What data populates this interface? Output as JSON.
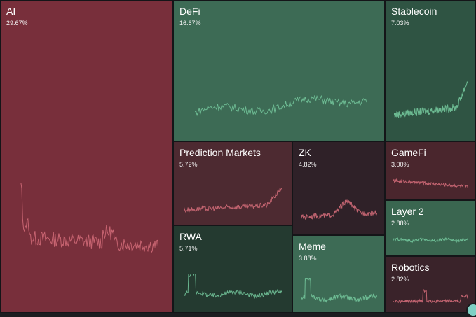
{
  "colors": {
    "up_strong": "#3d6b55",
    "up_dark": "#2e4f40",
    "down_strong": "#782f3b",
    "down_dark": "#4d2a31",
    "line_up": "#72c49a",
    "line_down": "#d06a78"
  },
  "tiles": [
    {
      "key": "ai",
      "name": "AI",
      "percent": "29.67%",
      "color": "#782f3b",
      "line": "#d06a78",
      "trend": "down-spike"
    },
    {
      "key": "defi",
      "name": "DeFi",
      "percent": "16.67%",
      "color": "#3d6b55",
      "line": "#72c49a",
      "trend": "up-wave"
    },
    {
      "key": "stablecoin",
      "name": "Stablecoin",
      "percent": "7.03%",
      "color": "#2f5443",
      "line": "#72c49a",
      "trend": "up-end"
    },
    {
      "key": "prediction",
      "name": "Prediction Markets",
      "percent": "5.72%",
      "color": "#4d2a31",
      "line": "#d06a78",
      "trend": "up-end"
    },
    {
      "key": "zk",
      "name": "ZK",
      "percent": "4.82%",
      "color": "#2f2128",
      "line": "#d06a78",
      "trend": "mid-hump"
    },
    {
      "key": "gamefi",
      "name": "GameFi",
      "percent": "3.00%",
      "color": "#4a262d",
      "line": "#d06a78",
      "trend": "flat-down"
    },
    {
      "key": "layer2",
      "name": "Layer 2",
      "percent": "2.88%",
      "color": "#3a6650",
      "line": "#72c49a",
      "trend": "flat"
    },
    {
      "key": "rwa",
      "name": "RWA",
      "percent": "5.71%",
      "color": "#243a30",
      "line": "#72c49a",
      "trend": "early-spike"
    },
    {
      "key": "meme",
      "name": "Meme",
      "percent": "3.88%",
      "color": "#3d6b55",
      "line": "#72c49a",
      "trend": "early-spike"
    },
    {
      "key": "robotics",
      "name": "Robotics",
      "percent": "2.82%",
      "color": "#3a232a",
      "line": "#d06a78",
      "trend": "flat-spike"
    }
  ]
}
